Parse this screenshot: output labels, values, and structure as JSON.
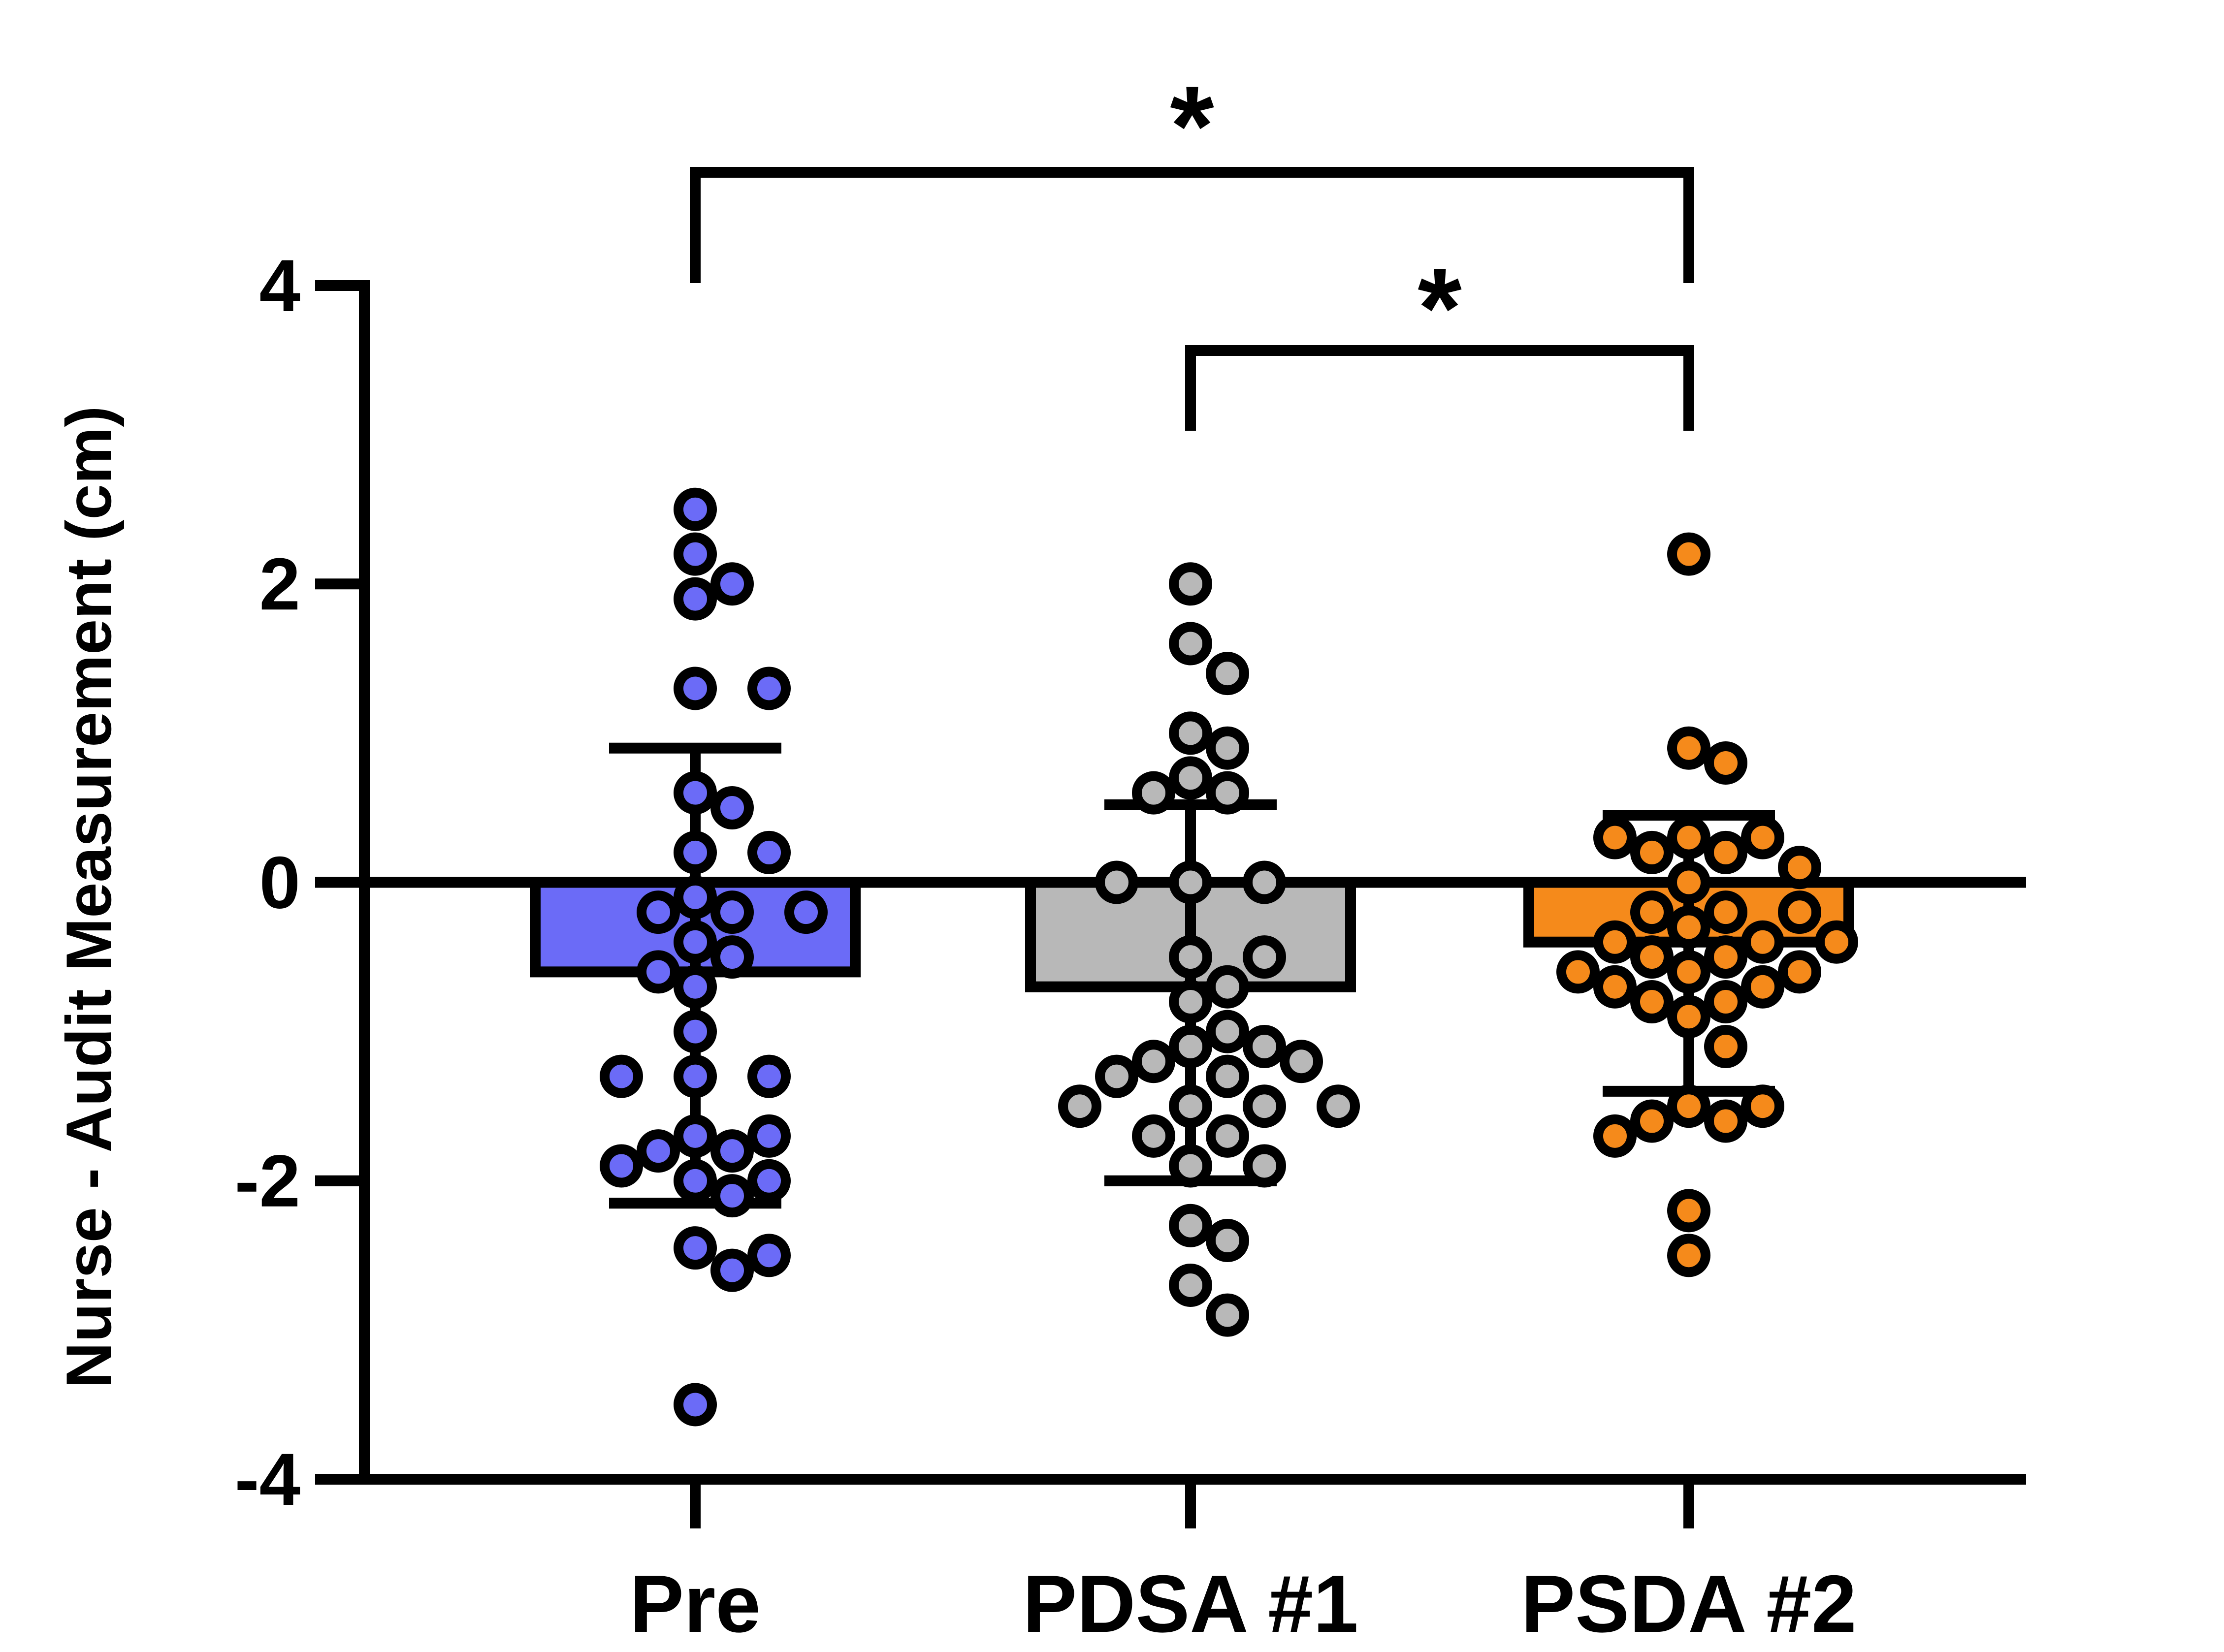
{
  "chart_data": {
    "type": "bar",
    "ylabel": "Nurse - Audit Measurement (cm)",
    "xlabel": "",
    "ylim": [
      -4,
      4
    ],
    "yticks": [
      4,
      2,
      0,
      -2,
      -4
    ],
    "ytick_labels": [
      "4",
      "2",
      "0",
      "-2",
      "-4"
    ],
    "categories": [
      "Pre",
      "PDSA #1",
      "PSDA #2"
    ],
    "means": [
      -0.6,
      -0.7,
      -0.4
    ],
    "sd_upper": [
      0.9,
      0.52,
      0.45
    ],
    "sd_lower": [
      -2.15,
      -2.0,
      -1.4
    ],
    "bar_colors": [
      "#6b6bf7",
      "#b8b8b8",
      "#f58a1b"
    ],
    "points": [
      [
        2.5,
        2.2,
        1.9,
        2.0,
        1.3,
        1.3,
        0.6,
        0.5,
        0.2,
        0.2,
        -0.2,
        -0.2,
        -0.2,
        -0.1,
        -0.4,
        -0.5,
        -0.6,
        -0.7,
        -1.0,
        -1.3,
        -1.3,
        -1.3,
        -1.7,
        -1.7,
        -1.8,
        -1.8,
        -1.9,
        -2.0,
        -2.0,
        -2.1,
        -2.45,
        -2.5,
        -2.6,
        -3.5
      ],
      [
        2.0,
        1.6,
        1.4,
        1.0,
        0.9,
        0.7,
        0.6,
        0.6,
        0.0,
        0.0,
        0.0,
        -0.5,
        -0.5,
        -0.7,
        -0.8,
        -1.0,
        -1.1,
        -1.1,
        -1.2,
        -1.2,
        -1.3,
        -1.3,
        -1.5,
        -1.5,
        -1.5,
        -1.5,
        -1.7,
        -1.7,
        -1.9,
        -1.9,
        -2.3,
        -2.4,
        -2.7,
        -2.9
      ],
      [
        2.2,
        0.9,
        0.8,
        0.3,
        0.3,
        0.3,
        0.2,
        0.2,
        0.1,
        0.0,
        -0.2,
        -0.2,
        -0.2,
        -0.3,
        -0.4,
        -0.4,
        -0.4,
        -0.5,
        -0.5,
        -0.6,
        -0.6,
        -0.6,
        -0.7,
        -0.7,
        -0.8,
        -0.8,
        -0.9,
        -1.1,
        -1.5,
        -1.5,
        -1.6,
        -1.6,
        -1.7,
        -2.2,
        -2.5
      ]
    ],
    "comparisons": [
      {
        "from": 0,
        "to": 2,
        "label": "*"
      },
      {
        "from": 1,
        "to": 2,
        "label": "*"
      }
    ],
    "legend": "none",
    "grid": false
  }
}
